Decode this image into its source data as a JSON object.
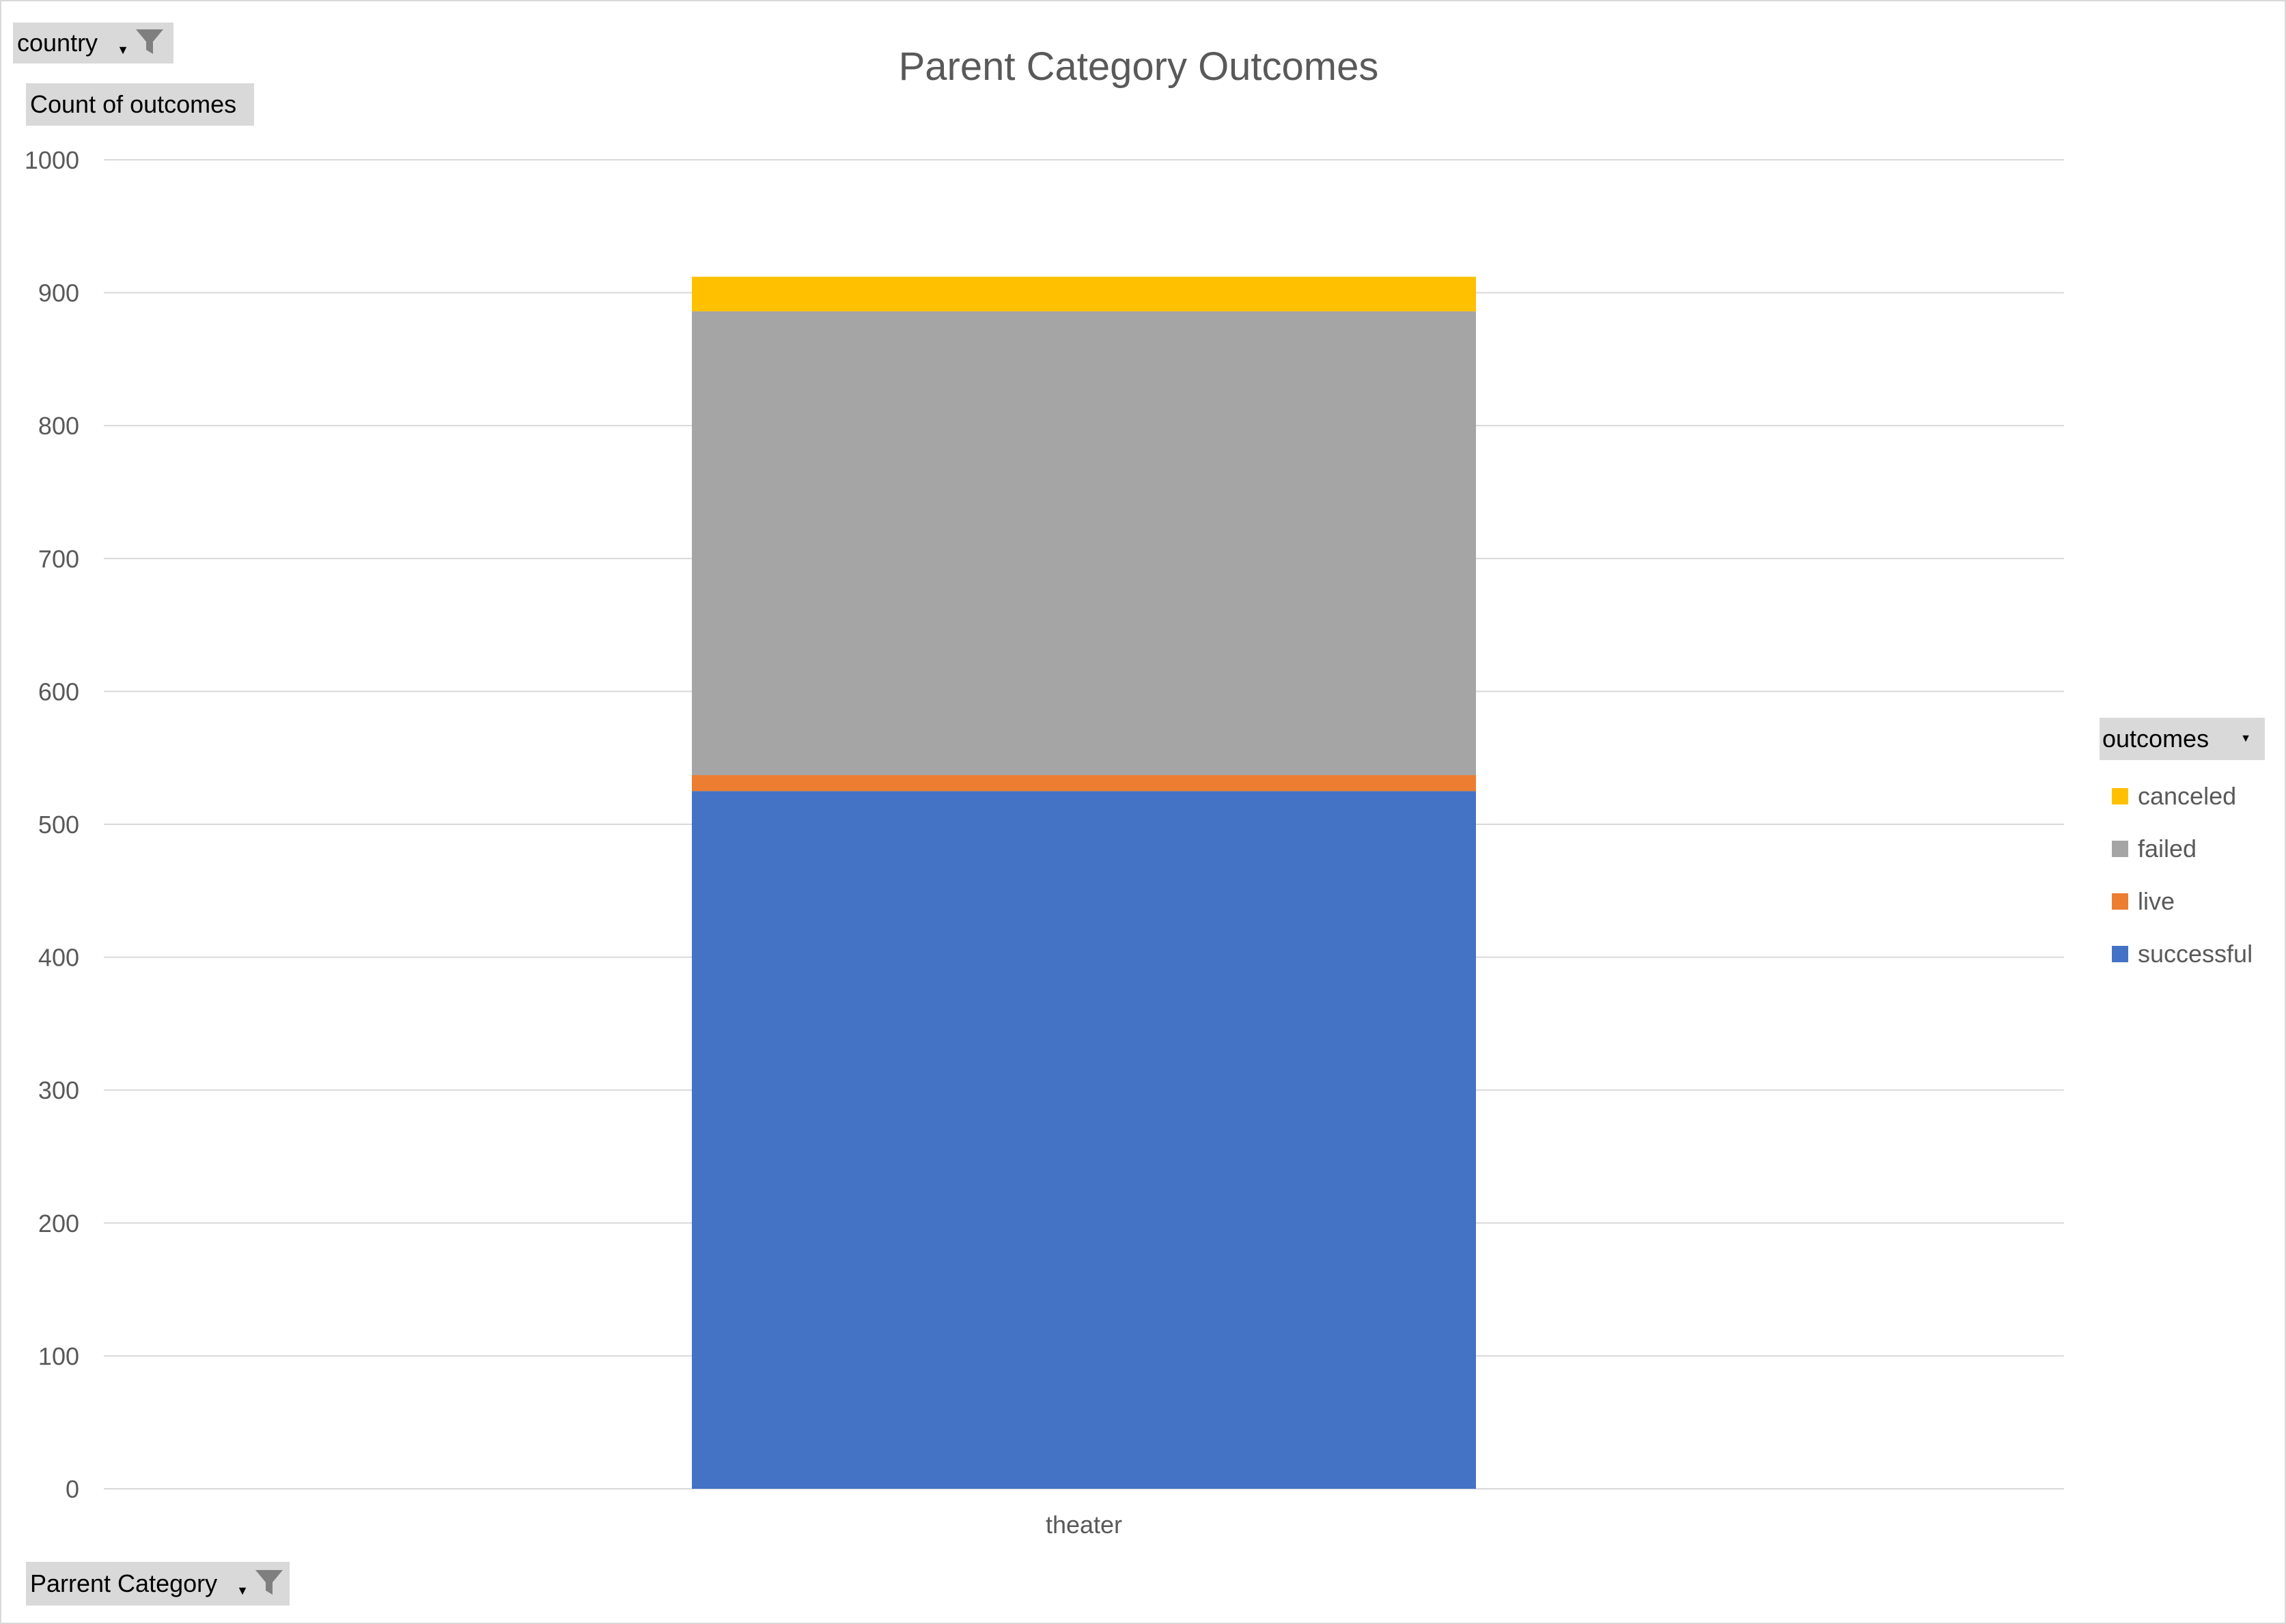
{
  "filters": {
    "country": "country",
    "values_field": "Count of outcomes",
    "axis_field": "Parrent Category",
    "legend_field": "outcomes"
  },
  "icons": {
    "filter": "funnel-icon",
    "dropdown": "dropdown-arrow-icon"
  },
  "chart_data": {
    "type": "bar",
    "stacked": true,
    "title": "Parent Category Outcomes",
    "xlabel": "",
    "ylabel": "",
    "categories": [
      "theater"
    ],
    "ylim": [
      0,
      1000
    ],
    "yticks": [
      0,
      100,
      200,
      300,
      400,
      500,
      600,
      700,
      800,
      900,
      1000
    ],
    "grid": true,
    "legend_position": "right",
    "series": [
      {
        "name": "successful",
        "values": [
          525
        ],
        "color": "#4472c4"
      },
      {
        "name": "live",
        "values": [
          12
        ],
        "color": "#ed7d31"
      },
      {
        "name": "failed",
        "values": [
          349
        ],
        "color": "#a5a5a5"
      },
      {
        "name": "canceled",
        "values": [
          26
        ],
        "color": "#ffc000"
      }
    ],
    "legend_order": [
      "canceled",
      "failed",
      "live",
      "successful"
    ]
  }
}
